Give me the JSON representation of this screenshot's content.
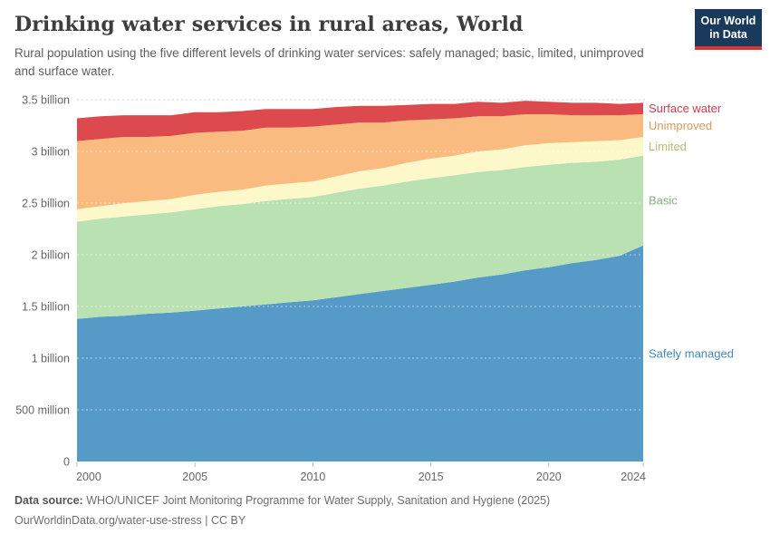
{
  "header": {
    "title": "Drinking water services in rural areas, World",
    "subtitle": "Rural population using the five different levels of drinking water services: safely managed; basic, limited, unimproved and surface water.",
    "logo": {
      "line1": "Our World",
      "line2": "in Data",
      "bg_color": "#1a3a5c",
      "accent_color": "#dc352d"
    }
  },
  "footer": {
    "source_label": "Data source:",
    "source_text": " WHO/UNICEF Joint Monitoring Programme for Water Supply, Sanitation and Hygiene (2025)",
    "link_text": "OurWorldinData.org/water-use-stress | CC BY"
  },
  "chart_data": {
    "type": "area",
    "stacked": true,
    "title": "Drinking water services in rural areas, World",
    "unit": "people",
    "x": [
      2000,
      2001,
      2002,
      2003,
      2004,
      2005,
      2006,
      2007,
      2008,
      2009,
      2010,
      2011,
      2012,
      2013,
      2014,
      2015,
      2016,
      2017,
      2018,
      2019,
      2020,
      2021,
      2022,
      2023,
      2024
    ],
    "xticks": [
      2000,
      2005,
      2010,
      2015,
      2020,
      2024
    ],
    "ylim": [
      0,
      3.5
    ],
    "yticks": [
      {
        "value": 0,
        "label": "0"
      },
      {
        "value": 0.5,
        "label": "500 million"
      },
      {
        "value": 1,
        "label": "1 billion"
      },
      {
        "value": 1.5,
        "label": "1.5 billion"
      },
      {
        "value": 2,
        "label": "2 billion"
      },
      {
        "value": 2.5,
        "label": "2.5 billion"
      },
      {
        "value": 3,
        "label": "3 billion"
      },
      {
        "value": 3.5,
        "label": "3.5 billion"
      }
    ],
    "grid": "horizontal dashed",
    "legend_position": "labels at right edge of plot",
    "value_unit": "billions of people",
    "series": [
      {
        "name": "Safely managed",
        "color": "#569bc8",
        "label_color": "#4387bb",
        "values": [
          1.38,
          1.4,
          1.41,
          1.43,
          1.44,
          1.46,
          1.48,
          1.5,
          1.52,
          1.54,
          1.56,
          1.59,
          1.62,
          1.65,
          1.68,
          1.71,
          1.74,
          1.78,
          1.81,
          1.85,
          1.88,
          1.92,
          1.95,
          1.99,
          2.09
        ]
      },
      {
        "name": "Basic",
        "color": "#bae1b2",
        "label_color": "#85b282",
        "values": [
          0.94,
          0.95,
          0.96,
          0.96,
          0.97,
          0.98,
          0.99,
          0.99,
          1.0,
          1.0,
          1.0,
          1.01,
          1.02,
          1.02,
          1.03,
          1.03,
          1.03,
          1.02,
          1.01,
          1.0,
          0.99,
          0.97,
          0.95,
          0.93,
          0.87
        ]
      },
      {
        "name": "Limited",
        "color": "#fdf8c9",
        "label_color": "#b9bd72",
        "values": [
          0.12,
          0.12,
          0.13,
          0.13,
          0.13,
          0.14,
          0.14,
          0.14,
          0.15,
          0.15,
          0.15,
          0.16,
          0.17,
          0.17,
          0.18,
          0.19,
          0.19,
          0.2,
          0.2,
          0.21,
          0.21,
          0.2,
          0.2,
          0.19,
          0.18
        ]
      },
      {
        "name": "Unimproved",
        "color": "#f9bb80",
        "label_color": "#dc9a5b",
        "values": [
          0.66,
          0.65,
          0.64,
          0.62,
          0.61,
          0.6,
          0.58,
          0.57,
          0.56,
          0.54,
          0.53,
          0.5,
          0.47,
          0.44,
          0.41,
          0.38,
          0.36,
          0.34,
          0.32,
          0.3,
          0.28,
          0.26,
          0.25,
          0.24,
          0.22
        ]
      },
      {
        "name": "Surface water",
        "color": "#dd4a4e",
        "label_color": "#cf3d4c",
        "values": [
          0.22,
          0.22,
          0.21,
          0.21,
          0.2,
          0.2,
          0.19,
          0.19,
          0.18,
          0.18,
          0.17,
          0.17,
          0.16,
          0.16,
          0.15,
          0.15,
          0.14,
          0.14,
          0.13,
          0.13,
          0.12,
          0.12,
          0.12,
          0.11,
          0.11
        ]
      }
    ]
  }
}
